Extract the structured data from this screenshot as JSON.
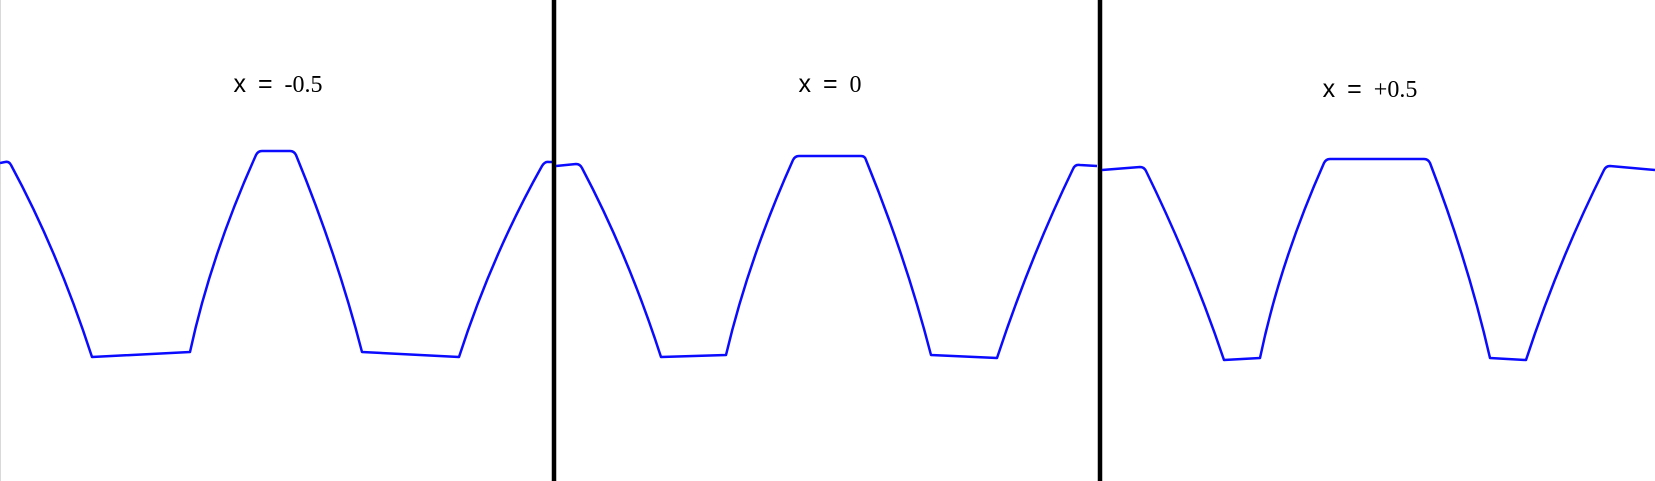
{
  "panels": [
    {
      "variable": "x",
      "equals": "=",
      "value": "-0.5"
    },
    {
      "variable": "x",
      "equals": "=",
      "value": "0"
    },
    {
      "variable": "x",
      "equals": "=",
      "value": "+0.5"
    }
  ],
  "colors": {
    "profile": "#0b0bff",
    "divider": "#000000",
    "background": "#ffffff"
  }
}
